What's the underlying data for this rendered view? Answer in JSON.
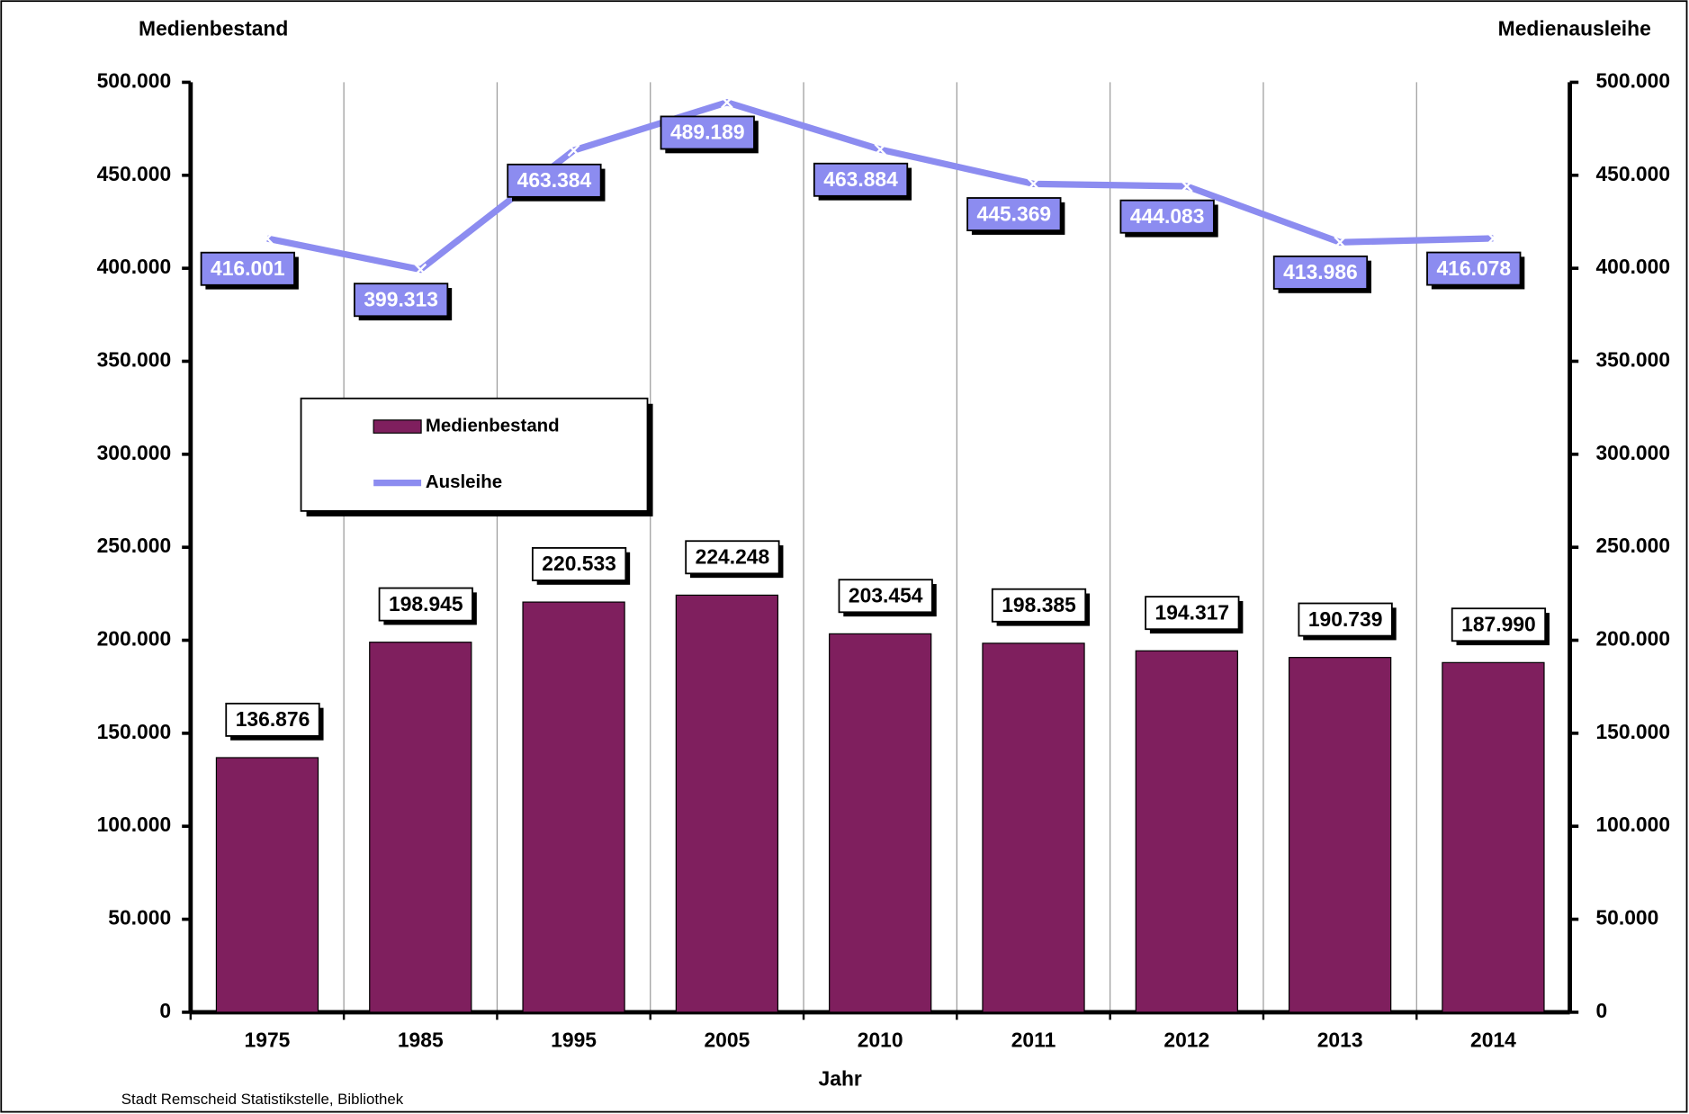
{
  "chart_data": {
    "type": "bar",
    "y_label": "Medienbestand",
    "y2_label": "Medienausleihe",
    "x_label": "Jahr",
    "source": "Stadt Remscheid Statistikstelle, Bibliothek",
    "categories": [
      "1975",
      "1985",
      "1995",
      "2005",
      "2010",
      "2011",
      "2012",
      "2013",
      "2014"
    ],
    "series": [
      {
        "name": "Medienbestand",
        "type": "bar",
        "color": "#7f1f5e",
        "values": [
          136876,
          198945,
          220533,
          224248,
          203454,
          198385,
          194317,
          190739,
          187990
        ],
        "value_labels": [
          "136.876",
          "198.945",
          "220.533",
          "224.248",
          "203.454",
          "198.385",
          "194.317",
          "190.739",
          "187.990"
        ]
      },
      {
        "name": "Ausleihe",
        "type": "line",
        "axis": "y2",
        "color": "#8c8cf0",
        "values": [
          416001,
          399313,
          463384,
          489189,
          463884,
          445369,
          444083,
          413986,
          416078
        ],
        "value_labels": [
          "416.001",
          "399.313",
          "463.384",
          "489.189",
          "463.884",
          "445.369",
          "444.083",
          "413.986",
          "416.078"
        ]
      }
    ],
    "ylim": [
      0,
      500000
    ],
    "yticks": [
      0,
      {
        "value": 50000,
        "label": "50.000"
      },
      {
        "value": 100000,
        "label": "100.000"
      },
      {
        "value": 150000,
        "label": "150.000"
      },
      {
        "value": 200000,
        "label": "200.000"
      },
      {
        "value": 250000,
        "label": "250.000"
      },
      {
        "value": 300000,
        "label": "300.000"
      },
      {
        "value": 350000,
        "label": "350.000"
      },
      {
        "value": 400000,
        "label": "400.000"
      },
      {
        "value": 450000,
        "label": "450.000"
      },
      {
        "value": 500000,
        "label": "500.000"
      }
    ],
    "y2lim": [
      0,
      500000
    ],
    "y2ticks": [
      0,
      {
        "value": 50000,
        "label": "50.000"
      },
      {
        "value": 100000,
        "label": "100.000"
      },
      {
        "value": 150000,
        "label": "150.000"
      },
      {
        "value": 200000,
        "label": "200.000"
      },
      {
        "value": 250000,
        "label": "250.000"
      },
      {
        "value": 300000,
        "label": "300.000"
      },
      {
        "value": 350000,
        "label": "350.000"
      },
      {
        "value": 400000,
        "label": "400.000"
      },
      {
        "value": 450000,
        "label": "450.000"
      },
      {
        "value": 500000,
        "label": "500.000"
      }
    ],
    "grid": true
  }
}
